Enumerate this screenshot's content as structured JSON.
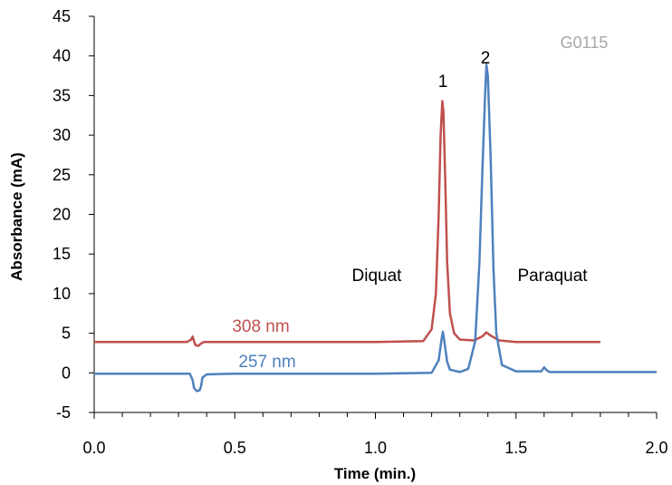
{
  "chart_data": {
    "type": "line",
    "title": "",
    "xlabel": "Time (min.)",
    "ylabel": "Absorbance (mA)",
    "xlim": [
      0,
      2
    ],
    "ylim": [
      -5,
      45
    ],
    "x_ticks": [
      "0.0",
      "0.5",
      "1.0",
      "1.5",
      "2.0"
    ],
    "x_tick_values": [
      0,
      0.5,
      1,
      1.5,
      2
    ],
    "y_ticks": [
      "-5",
      "0",
      "5",
      "10",
      "15",
      "20",
      "25",
      "30",
      "35",
      "40",
      "45"
    ],
    "y_tick_values": [
      -5,
      0,
      5,
      10,
      15,
      20,
      25,
      30,
      35,
      40,
      45
    ],
    "grid": false,
    "legend": "none",
    "sample_id": "G0115",
    "series": [
      {
        "name": "308 nm",
        "color": "#c0504d",
        "x": [
          0.0,
          0.33,
          0.345,
          0.35,
          0.355,
          0.36,
          0.37,
          0.38,
          0.39,
          0.4,
          1.0,
          1.17,
          1.2,
          1.215,
          1.225,
          1.232,
          1.238,
          1.242,
          1.248,
          1.255,
          1.265,
          1.28,
          1.3,
          1.35,
          1.38,
          1.395,
          1.41,
          1.44,
          1.5,
          1.8
        ],
        "y": [
          3.9,
          3.9,
          4.2,
          4.6,
          4.0,
          3.5,
          3.4,
          3.7,
          3.9,
          3.9,
          3.9,
          4.0,
          5.5,
          10.0,
          20.0,
          30.0,
          34.3,
          33.0,
          25.0,
          14.0,
          7.5,
          5.0,
          4.2,
          4.1,
          4.6,
          5.1,
          4.7,
          4.1,
          3.9,
          3.9
        ]
      },
      {
        "name": "257 nm",
        "color": "#4f81bd",
        "x": [
          0.0,
          0.34,
          0.35,
          0.355,
          0.365,
          0.375,
          0.38,
          0.385,
          0.4,
          0.5,
          1.0,
          1.2,
          1.225,
          1.235,
          1.24,
          1.245,
          1.255,
          1.265,
          1.3,
          1.33,
          1.355,
          1.37,
          1.38,
          1.39,
          1.395,
          1.4,
          1.41,
          1.42,
          1.43,
          1.45,
          1.5,
          1.59,
          1.6,
          1.61,
          1.62,
          1.7,
          2.0
        ],
        "y": [
          -0.1,
          -0.1,
          -0.9,
          -1.9,
          -2.3,
          -2.2,
          -1.7,
          -0.6,
          -0.2,
          -0.1,
          -0.1,
          0.0,
          1.6,
          4.2,
          5.2,
          4.0,
          1.4,
          0.4,
          0.1,
          0.5,
          4.0,
          14.0,
          25.0,
          35.0,
          38.9,
          37.5,
          27.0,
          13.0,
          5.0,
          1.0,
          0.2,
          0.2,
          0.7,
          0.3,
          0.1,
          0.1,
          0.1
        ]
      }
    ],
    "annotations": {
      "peak1": "1",
      "peak2": "2",
      "diquat": "Diquat",
      "paraquat": "Paraquat"
    }
  }
}
